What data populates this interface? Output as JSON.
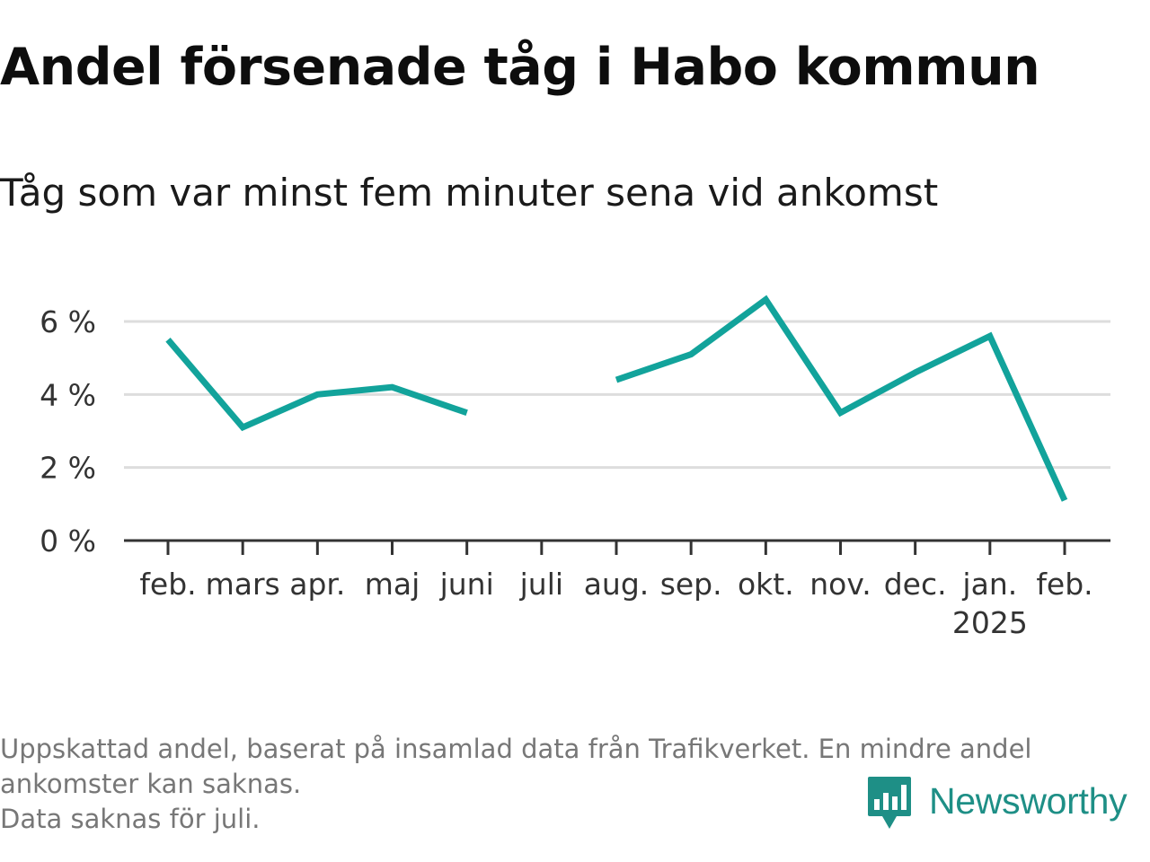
{
  "title": "Andel försenade tåg i Habo kommun",
  "subtitle": "Tåg som var minst fem minuter sena vid ankomst",
  "notes": [
    "Uppskattad andel, baserat på insamlad data från Trafikverket. En mindre andel",
    "ankomster kan saknas.",
    "Data saknas för juli."
  ],
  "brand": {
    "name": "Newsworthy",
    "icon": "newsworthy-bar-chart-icon",
    "color": "#1e8f86"
  },
  "chart_data": {
    "type": "line",
    "title": "Andel försenade tåg i Habo kommun",
    "subtitle": "Tåg som var minst fem minuter sena vid ankomst",
    "xlabel": "",
    "ylabel": "",
    "categories": [
      "feb.",
      "mars",
      "apr.",
      "maj",
      "juni",
      "juli",
      "aug.",
      "sep.",
      "okt.",
      "nov.",
      "dec.",
      "jan.",
      "feb."
    ],
    "category_sublabels": [
      "",
      "",
      "",
      "",
      "",
      "",
      "",
      "",
      "",
      "",
      "",
      "2025",
      ""
    ],
    "series": [
      {
        "values": [
          5.5,
          3.1,
          4.0,
          4.2,
          3.5,
          null,
          4.4,
          5.1,
          6.6,
          3.5,
          4.6,
          5.6,
          1.1
        ]
      }
    ],
    "yticks": [
      0,
      2,
      4,
      6
    ],
    "ytick_labels": [
      "0 %",
      "2 %",
      "4 %",
      "6 %"
    ],
    "ylim": [
      0,
      6.6
    ],
    "grid": true,
    "line_color": "#12a39b",
    "grid_color": "#dddddd",
    "axis_color": "#333333"
  }
}
